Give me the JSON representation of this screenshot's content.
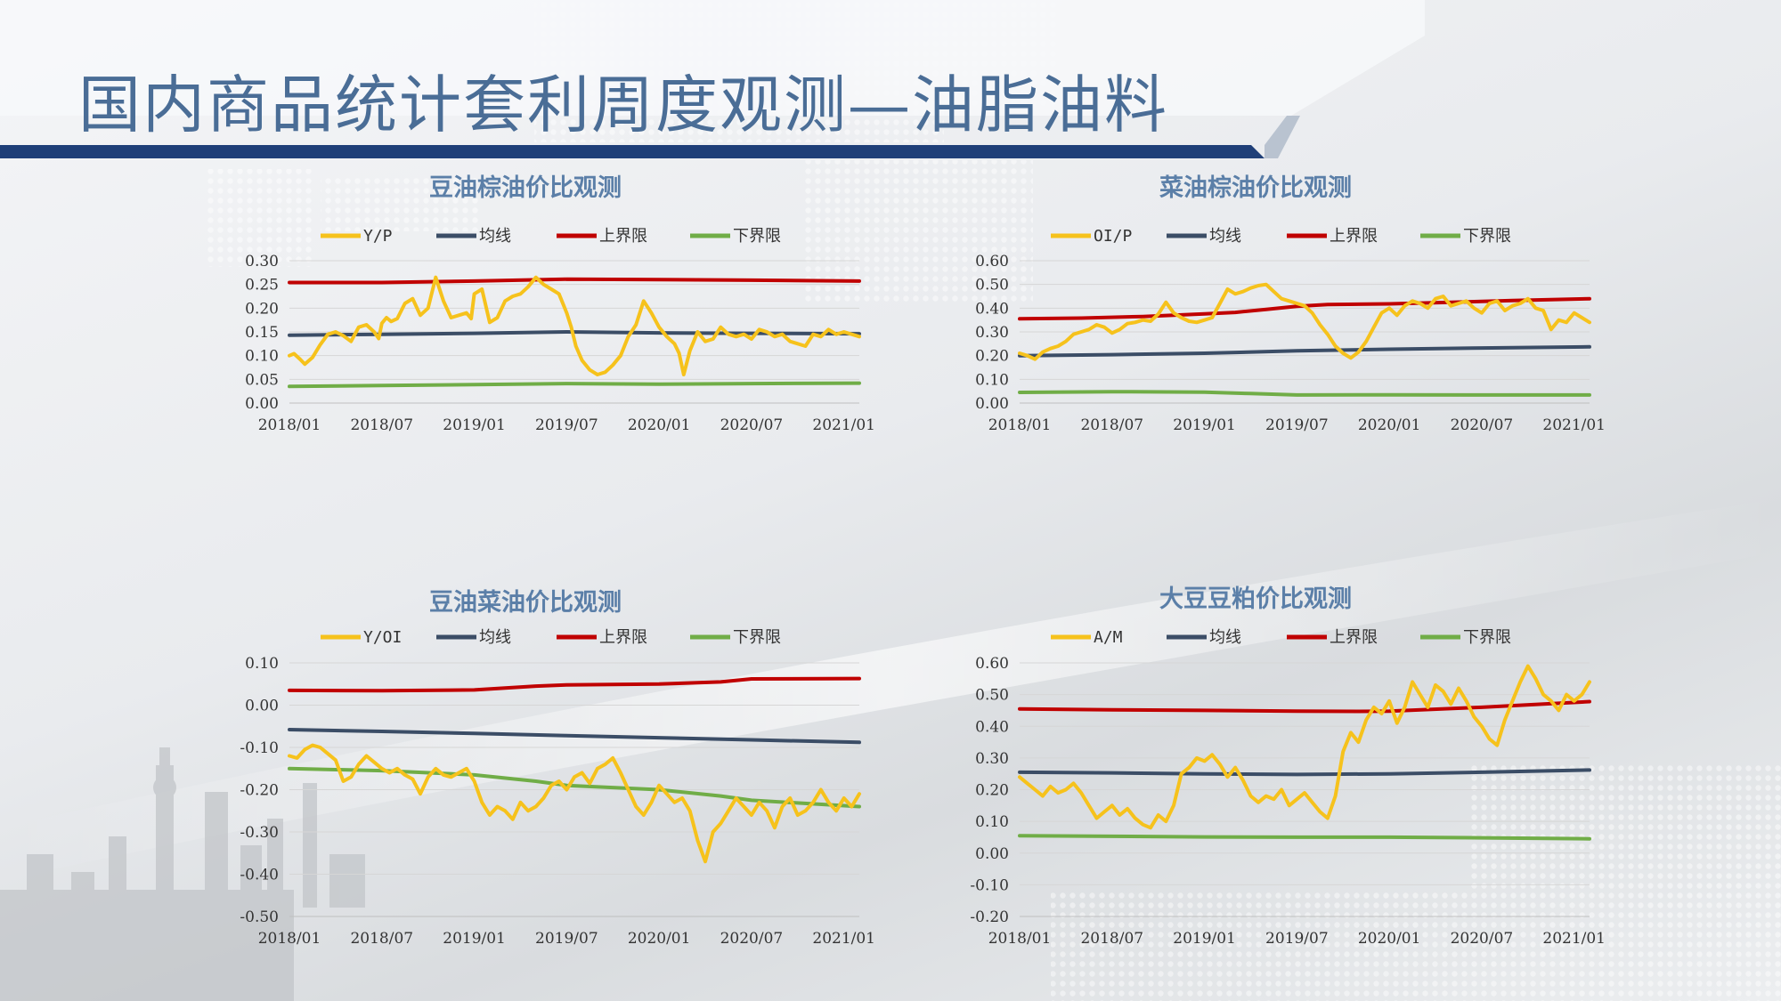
{
  "page": {
    "title": "国内商品统计套利周度观测—油脂油料"
  },
  "colors": {
    "ratio": "#f6c21c",
    "mean": "#3b4d66",
    "upper": "#c00000",
    "lower": "#70ad47",
    "title": "#5b7fa8",
    "banner": "#1f3f78"
  },
  "legend_labels": {
    "mean": "均线",
    "upper": "上界限",
    "lower": "下界限"
  },
  "chart_data": [
    {
      "type": "line",
      "title": "豆油棕油价比观测",
      "x_ticks": [
        "2018/01",
        "2018/07",
        "2019/01",
        "2019/07",
        "2020/01",
        "2020/07",
        "2021/01"
      ],
      "ylim": [
        0,
        0.3
      ],
      "y_ticks": [
        0.0,
        0.05,
        0.1,
        0.15,
        0.2,
        0.25,
        0.3
      ],
      "grid": true,
      "legend": "top",
      "series": [
        {
          "name": "Y/P",
          "role": "ratio",
          "x": [
            0,
            0.3,
            0.7,
            1,
            1.5,
            2,
            2.5,
            3,
            3.5,
            4,
            4.5,
            5,
            5.5,
            5.8,
            6,
            6.3,
            6.6,
            7,
            7.5,
            8,
            8.5,
            9,
            9.5,
            10,
            10.5,
            11,
            11.5,
            11.8,
            12,
            12.5,
            13,
            13.5,
            14,
            14.5,
            15,
            15.5,
            16,
            16.5,
            17,
            17.5,
            18,
            18.3,
            18.6,
            19,
            19.5,
            20,
            20.5,
            21,
            21.5,
            22,
            22.5,
            23,
            23.5,
            24,
            24.5,
            25,
            25.3,
            25.6,
            26,
            26.5,
            27,
            27.5,
            28,
            28.5,
            29,
            29.5,
            30,
            30.5,
            31,
            31.5,
            32,
            32.5,
            33,
            33.5,
            34,
            34.5,
            35,
            35.5,
            36,
            36.5,
            37
          ],
          "y": [
            0.1,
            0.104,
            0.092,
            0.082,
            0.096,
            0.123,
            0.145,
            0.15,
            0.142,
            0.13,
            0.16,
            0.165,
            0.15,
            0.136,
            0.168,
            0.18,
            0.172,
            0.178,
            0.21,
            0.22,
            0.185,
            0.2,
            0.265,
            0.215,
            0.18,
            0.185,
            0.19,
            0.178,
            0.23,
            0.24,
            0.17,
            0.18,
            0.215,
            0.225,
            0.23,
            0.245,
            0.265,
            0.25,
            0.24,
            0.23,
            0.19,
            0.16,
            0.12,
            0.09,
            0.07,
            0.06,
            0.065,
            0.08,
            0.1,
            0.14,
            0.165,
            0.215,
            0.19,
            0.16,
            0.14,
            0.125,
            0.105,
            0.06,
            0.11,
            0.15,
            0.13,
            0.135,
            0.16,
            0.145,
            0.14,
            0.145,
            0.135,
            0.155,
            0.15,
            0.14,
            0.145,
            0.13,
            0.125,
            0.12,
            0.145,
            0.14,
            0.155,
            0.145,
            0.15,
            0.145,
            0.14
          ]
        },
        {
          "name": "均线",
          "role": "mean",
          "x": [
            0,
            6,
            12,
            18,
            24,
            30,
            37
          ],
          "y": [
            0.143,
            0.145,
            0.147,
            0.15,
            0.148,
            0.147,
            0.146
          ]
        },
        {
          "name": "上界限",
          "role": "upper",
          "x": [
            0,
            6,
            12,
            18,
            24,
            30,
            37
          ],
          "y": [
            0.254,
            0.254,
            0.257,
            0.261,
            0.26,
            0.259,
            0.257
          ]
        },
        {
          "name": "下界限",
          "role": "lower",
          "x": [
            0,
            6,
            12,
            18,
            24,
            30,
            37
          ],
          "y": [
            0.035,
            0.037,
            0.039,
            0.041,
            0.04,
            0.041,
            0.042
          ]
        }
      ]
    },
    {
      "type": "line",
      "title": "菜油棕油价比观测",
      "x_ticks": [
        "2018/01",
        "2018/07",
        "2019/01",
        "2019/07",
        "2020/01",
        "2020/07",
        "2021/01"
      ],
      "ylim": [
        0,
        0.6
      ],
      "y_ticks": [
        0.0,
        0.1,
        0.2,
        0.3,
        0.4,
        0.5,
        0.6
      ],
      "grid": true,
      "legend": "top",
      "series": [
        {
          "name": "OI/P",
          "role": "ratio",
          "x": [
            0,
            0.5,
            1,
            1.5,
            2,
            2.5,
            3,
            3.5,
            4,
            4.5,
            5,
            5.5,
            6,
            6.5,
            7,
            7.5,
            8,
            8.5,
            9,
            9.5,
            10,
            10.5,
            11,
            11.5,
            12,
            12.5,
            13,
            13.5,
            14,
            14.5,
            15,
            15.5,
            16,
            16.5,
            17,
            17.5,
            18,
            18.5,
            19,
            19.5,
            20,
            20.5,
            21,
            21.5,
            22,
            22.5,
            23,
            23.5,
            24,
            24.5,
            25,
            25.5,
            26,
            26.5,
            27,
            27.5,
            28,
            28.5,
            29,
            29.5,
            30,
            30.5,
            31,
            31.5,
            32,
            32.5,
            33,
            33.5,
            34,
            34.5,
            35,
            35.5,
            36,
            36.5,
            37
          ],
          "y": [
            0.21,
            0.2,
            0.185,
            0.215,
            0.23,
            0.24,
            0.26,
            0.29,
            0.3,
            0.31,
            0.33,
            0.32,
            0.295,
            0.31,
            0.335,
            0.34,
            0.35,
            0.345,
            0.375,
            0.425,
            0.38,
            0.36,
            0.345,
            0.34,
            0.35,
            0.36,
            0.42,
            0.48,
            0.46,
            0.47,
            0.485,
            0.495,
            0.5,
            0.47,
            0.44,
            0.43,
            0.42,
            0.41,
            0.38,
            0.33,
            0.29,
            0.24,
            0.21,
            0.19,
            0.215,
            0.26,
            0.32,
            0.38,
            0.4,
            0.37,
            0.41,
            0.43,
            0.42,
            0.4,
            0.44,
            0.45,
            0.41,
            0.42,
            0.43,
            0.4,
            0.38,
            0.42,
            0.43,
            0.39,
            0.41,
            0.42,
            0.44,
            0.4,
            0.39,
            0.31,
            0.35,
            0.34,
            0.38,
            0.36,
            0.34
          ]
        },
        {
          "name": "均线",
          "role": "mean",
          "x": [
            0,
            6,
            12,
            18,
            24,
            30,
            37
          ],
          "y": [
            0.2,
            0.204,
            0.21,
            0.22,
            0.227,
            0.232,
            0.237
          ]
        },
        {
          "name": "上界限",
          "role": "upper",
          "x": [
            0,
            4,
            8,
            12,
            14,
            16,
            18,
            20,
            24,
            28,
            32,
            37
          ],
          "y": [
            0.355,
            0.358,
            0.365,
            0.376,
            0.382,
            0.395,
            0.408,
            0.415,
            0.418,
            0.425,
            0.432,
            0.44
          ]
        },
        {
          "name": "下界限",
          "role": "lower",
          "x": [
            0,
            6,
            12,
            15,
            18,
            24,
            30,
            37
          ],
          "y": [
            0.045,
            0.048,
            0.046,
            0.04,
            0.034,
            0.035,
            0.034,
            0.034
          ]
        }
      ]
    },
    {
      "type": "line",
      "title": "豆油菜油价比观测",
      "x_ticks": [
        "2018/01",
        "2018/07",
        "2019/01",
        "2019/07",
        "2020/01",
        "2020/07",
        "2021/01"
      ],
      "ylim": [
        -0.5,
        0.1
      ],
      "y_ticks": [
        0.1,
        0.0,
        -0.1,
        -0.2,
        -0.3,
        -0.4,
        -0.5
      ],
      "grid": true,
      "legend": "top",
      "series": [
        {
          "name": "Y/OI",
          "role": "ratio",
          "x": [
            0,
            0.5,
            1,
            1.5,
            2,
            2.5,
            3,
            3.5,
            4,
            4.5,
            5,
            5.5,
            6,
            6.5,
            7,
            7.5,
            8,
            8.5,
            9,
            9.5,
            10,
            10.5,
            11,
            11.5,
            12,
            12.5,
            13,
            13.5,
            14,
            14.5,
            15,
            15.5,
            16,
            16.5,
            17,
            17.5,
            18,
            18.5,
            19,
            19.5,
            20,
            20.5,
            21,
            21.5,
            22,
            22.5,
            23,
            23.5,
            24,
            24.5,
            25,
            25.5,
            26,
            26.5,
            27,
            27.5,
            28,
            28.5,
            29,
            29.5,
            30,
            30.5,
            31,
            31.5,
            32,
            32.5,
            33,
            33.5,
            34,
            34.5,
            35,
            35.5,
            36,
            36.5,
            37
          ],
          "y": [
            -0.12,
            -0.125,
            -0.105,
            -0.095,
            -0.1,
            -0.115,
            -0.13,
            -0.18,
            -0.17,
            -0.14,
            -0.12,
            -0.135,
            -0.15,
            -0.16,
            -0.15,
            -0.165,
            -0.175,
            -0.21,
            -0.17,
            -0.15,
            -0.165,
            -0.17,
            -0.16,
            -0.15,
            -0.18,
            -0.23,
            -0.26,
            -0.24,
            -0.25,
            -0.27,
            -0.23,
            -0.25,
            -0.24,
            -0.22,
            -0.19,
            -0.18,
            -0.2,
            -0.17,
            -0.16,
            -0.185,
            -0.15,
            -0.14,
            -0.125,
            -0.16,
            -0.2,
            -0.24,
            -0.26,
            -0.23,
            -0.19,
            -0.21,
            -0.23,
            -0.22,
            -0.25,
            -0.32,
            -0.37,
            -0.3,
            -0.28,
            -0.25,
            -0.22,
            -0.24,
            -0.26,
            -0.23,
            -0.25,
            -0.29,
            -0.24,
            -0.22,
            -0.26,
            -0.25,
            -0.23,
            -0.2,
            -0.23,
            -0.25,
            -0.22,
            -0.24,
            -0.21
          ]
        },
        {
          "name": "均线",
          "role": "mean",
          "x": [
            0,
            6,
            12,
            18,
            24,
            30,
            37
          ],
          "y": [
            -0.058,
            -0.062,
            -0.067,
            -0.072,
            -0.077,
            -0.082,
            -0.088
          ]
        },
        {
          "name": "上界限",
          "role": "upper",
          "x": [
            0,
            6,
            12,
            16,
            18,
            24,
            28,
            30,
            37
          ],
          "y": [
            0.035,
            0.034,
            0.036,
            0.045,
            0.048,
            0.05,
            0.055,
            0.062,
            0.063
          ]
        },
        {
          "name": "下界限",
          "role": "lower",
          "x": [
            0,
            6,
            12,
            16,
            18,
            24,
            28,
            30,
            37
          ],
          "y": [
            -0.15,
            -0.155,
            -0.165,
            -0.18,
            -0.19,
            -0.2,
            -0.215,
            -0.225,
            -0.24
          ]
        }
      ]
    },
    {
      "type": "line",
      "title": "大豆豆粕价比观测",
      "x_ticks": [
        "2018/01",
        "2018/07",
        "2019/01",
        "2019/07",
        "2020/01",
        "2020/07",
        "2021/01"
      ],
      "ylim": [
        -0.2,
        0.6
      ],
      "y_ticks": [
        0.6,
        0.5,
        0.4,
        0.3,
        0.2,
        0.1,
        0.0,
        -0.1,
        -0.2
      ],
      "grid": true,
      "legend": "top",
      "series": [
        {
          "name": "A/M",
          "role": "ratio",
          "x": [
            0,
            0.5,
            1,
            1.5,
            2,
            2.5,
            3,
            3.5,
            4,
            4.5,
            5,
            5.5,
            6,
            6.5,
            7,
            7.5,
            8,
            8.5,
            9,
            9.5,
            10,
            10.5,
            11,
            11.5,
            12,
            12.5,
            13,
            13.5,
            14,
            14.5,
            15,
            15.5,
            16,
            16.5,
            17,
            17.5,
            18,
            18.5,
            19,
            19.5,
            20,
            20.5,
            21,
            21.5,
            22,
            22.5,
            23,
            23.5,
            24,
            24.5,
            25,
            25.5,
            26,
            26.5,
            27,
            27.5,
            28,
            28.5,
            29,
            29.5,
            30,
            30.5,
            31,
            31.5,
            32,
            32.5,
            33,
            33.5,
            34,
            34.5,
            35,
            35.5,
            36,
            36.5,
            37
          ],
          "y": [
            0.24,
            0.22,
            0.2,
            0.18,
            0.21,
            0.19,
            0.2,
            0.22,
            0.19,
            0.15,
            0.11,
            0.13,
            0.15,
            0.12,
            0.14,
            0.11,
            0.09,
            0.08,
            0.12,
            0.1,
            0.15,
            0.25,
            0.27,
            0.3,
            0.29,
            0.31,
            0.28,
            0.24,
            0.27,
            0.23,
            0.18,
            0.16,
            0.18,
            0.17,
            0.2,
            0.15,
            0.17,
            0.19,
            0.16,
            0.13,
            0.11,
            0.18,
            0.32,
            0.38,
            0.35,
            0.42,
            0.46,
            0.44,
            0.48,
            0.41,
            0.46,
            0.54,
            0.5,
            0.46,
            0.53,
            0.51,
            0.47,
            0.52,
            0.48,
            0.43,
            0.4,
            0.36,
            0.34,
            0.42,
            0.48,
            0.54,
            0.59,
            0.55,
            0.5,
            0.48,
            0.45,
            0.5,
            0.48,
            0.5,
            0.54
          ]
        },
        {
          "name": "均线",
          "role": "mean",
          "x": [
            0,
            6,
            12,
            18,
            24,
            30,
            37
          ],
          "y": [
            0.255,
            0.253,
            0.25,
            0.248,
            0.25,
            0.255,
            0.262
          ]
        },
        {
          "name": "上界限",
          "role": "upper",
          "x": [
            0,
            6,
            12,
            18,
            22,
            24,
            30,
            37
          ],
          "y": [
            0.455,
            0.452,
            0.45,
            0.448,
            0.447,
            0.448,
            0.46,
            0.478
          ]
        },
        {
          "name": "下界限",
          "role": "lower",
          "x": [
            0,
            6,
            12,
            18,
            24,
            30,
            37
          ],
          "y": [
            0.055,
            0.053,
            0.051,
            0.05,
            0.05,
            0.048,
            0.045
          ]
        }
      ]
    }
  ]
}
